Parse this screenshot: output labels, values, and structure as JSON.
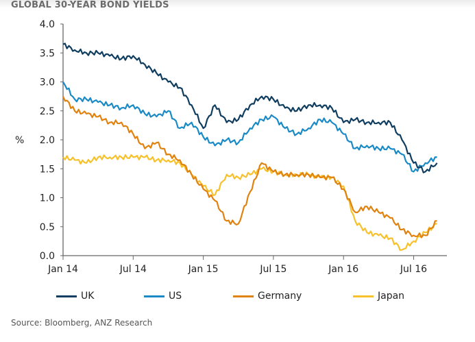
{
  "chart_data": {
    "type": "line",
    "title": "GLOBAL 30-YEAR BOND YIELDS",
    "ylabel": "%",
    "xlabel": "",
    "ylim": [
      0,
      4
    ],
    "yticks": [
      "0.0",
      "0.5",
      "1.0",
      "1.5",
      "2.0",
      "2.5",
      "3.0",
      "3.5",
      "4.0"
    ],
    "xtick_labels": [
      "Jan 14",
      "Jul 14",
      "Jan 15",
      "Jul 15",
      "Jan 16",
      "Jul 16"
    ],
    "x": [
      "2014-01",
      "2014-02",
      "2014-03",
      "2014-04",
      "2014-05",
      "2014-06",
      "2014-07",
      "2014-08",
      "2014-09",
      "2014-10",
      "2014-11",
      "2014-12",
      "2015-01",
      "2015-02",
      "2015-03",
      "2015-04",
      "2015-05",
      "2015-06",
      "2015-07",
      "2015-08",
      "2015-09",
      "2015-10",
      "2015-11",
      "2015-12",
      "2016-01",
      "2016-02",
      "2016-03",
      "2016-04",
      "2016-05",
      "2016-06",
      "2016-07",
      "2016-08",
      "2016-09"
    ],
    "grid": false,
    "legend": "bottom",
    "series": [
      {
        "name": "UK",
        "color": "#0f3d60",
        "values": [
          3.65,
          3.55,
          3.5,
          3.5,
          3.45,
          3.4,
          3.45,
          3.3,
          3.15,
          3.0,
          2.9,
          2.6,
          2.2,
          2.6,
          2.3,
          2.35,
          2.6,
          2.75,
          2.7,
          2.55,
          2.5,
          2.6,
          2.6,
          2.55,
          2.3,
          2.35,
          2.3,
          2.3,
          2.3,
          2.0,
          1.6,
          1.45,
          1.6
        ]
      },
      {
        "name": "US",
        "color": "#1a8ac6",
        "values": [
          3.0,
          2.7,
          2.7,
          2.65,
          2.6,
          2.55,
          2.6,
          2.45,
          2.4,
          2.5,
          2.2,
          2.3,
          2.05,
          1.9,
          2.0,
          1.95,
          2.2,
          2.35,
          2.4,
          2.2,
          2.1,
          2.2,
          2.35,
          2.3,
          2.1,
          1.85,
          1.9,
          1.85,
          1.85,
          1.75,
          1.45,
          1.6,
          1.7
        ]
      },
      {
        "name": "Germany",
        "color": "#e0820f",
        "values": [
          2.75,
          2.5,
          2.45,
          2.4,
          2.3,
          2.3,
          2.1,
          1.85,
          1.95,
          1.75,
          1.65,
          1.4,
          1.15,
          0.95,
          0.6,
          0.55,
          1.1,
          1.6,
          1.45,
          1.4,
          1.4,
          1.4,
          1.35,
          1.35,
          1.15,
          0.75,
          0.85,
          0.75,
          0.65,
          0.45,
          0.35,
          0.35,
          0.6
        ]
      },
      {
        "name": "Japan",
        "color": "#f7c12b",
        "values": [
          1.7,
          1.65,
          1.6,
          1.7,
          1.7,
          1.7,
          1.7,
          1.7,
          1.65,
          1.65,
          1.6,
          1.4,
          1.2,
          1.05,
          1.4,
          1.35,
          1.4,
          1.5,
          1.45,
          1.4,
          1.4,
          1.4,
          1.35,
          1.35,
          1.2,
          0.6,
          0.4,
          0.35,
          0.3,
          0.1,
          0.25,
          0.4,
          0.55
        ]
      }
    ]
  },
  "source": "Source: Bloomberg, ANZ Research"
}
